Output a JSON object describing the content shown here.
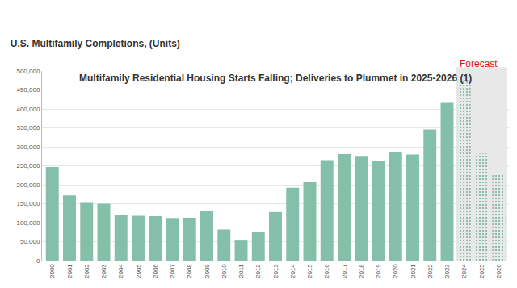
{
  "chart_data": {
    "type": "bar",
    "title": "Multifamily Residential Housing Starts Falling; Deliveries to Plummet in 2025-2026 (1)",
    "subtitle": "U.S. Multifamily Completions, (Units)",
    "categories": [
      "2000",
      "2001",
      "2002",
      "2003",
      "2004",
      "2005",
      "2006",
      "2007",
      "2008",
      "2009",
      "2010",
      "2011",
      "2012",
      "2013",
      "2014",
      "2015",
      "2016",
      "2017",
      "2018",
      "2019",
      "2020",
      "2021",
      "2022",
      "2023",
      "2024",
      "2025",
      "2026"
    ],
    "values": [
      247000,
      172000,
      152000,
      150000,
      121000,
      118000,
      117000,
      112000,
      113000,
      131000,
      82000,
      53000,
      75000,
      128000,
      192000,
      208000,
      265000,
      281000,
      276000,
      264000,
      286000,
      280000,
      346000,
      416000,
      475000,
      282000,
      228000
    ],
    "color": "#84bfa9",
    "ylim": [
      0,
      500000
    ],
    "yticks": [
      0,
      {
        "value": 50000,
        "label": "50,000"
      },
      {
        "value": 100000,
        "label": "100,000"
      },
      {
        "value": 150000,
        "label": "150,000"
      },
      {
        "value": 200000,
        "label": "200,000"
      },
      {
        "value": 250000,
        "label": "250,000"
      },
      {
        "value": 300000,
        "label": "300,000"
      },
      {
        "value": 350000,
        "label": "350,000"
      },
      {
        "value": 400000,
        "label": "400,000"
      },
      {
        "value": 450000,
        "label": "450,000"
      },
      {
        "value": 500000,
        "label": "500,000"
      }
    ],
    "grid": true,
    "annotations": [
      {
        "text": "Forecast",
        "category": "2024",
        "color": "#e8120c"
      }
    ]
  }
}
